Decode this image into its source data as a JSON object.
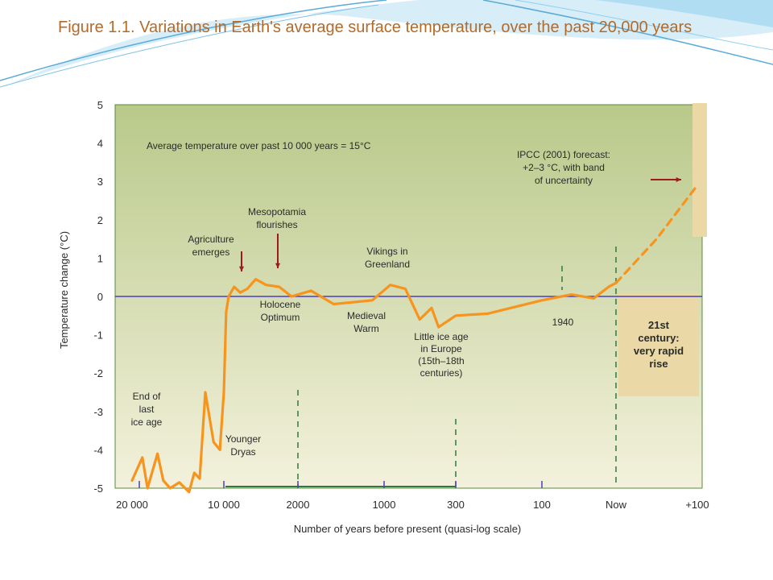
{
  "slide": {
    "title": "Figure 1.1. Variations in Earth's average surface temperature, over the past 20,000 years"
  },
  "colors": {
    "title": "#b36b2a",
    "curve": "#f7941d",
    "baseline": "#4b3fbf",
    "arrow": "#9e1b1b",
    "plot_bg_top": "#b9c98a",
    "plot_bg_bottom": "#f3f1dc",
    "forecast_band": "#ead9a6",
    "century_box": "#ead9a6",
    "gridline": "#2f7a3a"
  },
  "chart_data": {
    "type": "line",
    "xlabel": "Number of years before present (quasi-log scale)",
    "ylabel": "Temperature change (°C)",
    "ylim": [
      -5,
      5
    ],
    "y_ticks": [
      "5",
      "4",
      "3",
      "2",
      "1",
      "0",
      "-1",
      "-2",
      "-3",
      "-4",
      "-5"
    ],
    "x_ticks": [
      "20 000",
      "10 000",
      "2000",
      "1000",
      "300",
      "100",
      "Now",
      "+100"
    ],
    "baseline_value": 0,
    "series": [
      {
        "style": "solid",
        "points": [
          [
            "20 000",
            -4.8
          ],
          [
            -18500,
            -4.2
          ],
          [
            -17800,
            -5.0
          ],
          [
            -16500,
            -4.1
          ],
          [
            -15800,
            -4.8
          ],
          [
            -15000,
            -5.0
          ],
          [
            -14000,
            -4.85
          ],
          [
            -13000,
            -5.1
          ],
          [
            -12500,
            -4.6
          ],
          [
            -12000,
            -4.75
          ],
          [
            -11500,
            -2.5
          ],
          [
            -10800,
            -3.8
          ],
          [
            -10300,
            -4.0
          ],
          [
            -10000,
            -2.5
          ],
          [
            -9500,
            -0.4
          ],
          [
            -9000,
            0.0
          ],
          [
            -8000,
            0.25
          ],
          [
            -7000,
            0.1
          ],
          [
            -6000,
            0.2
          ],
          [
            -5000,
            0.45
          ],
          [
            -4000,
            0.3
          ],
          [
            -3000,
            0.25
          ],
          [
            -2300,
            0.0
          ],
          [
            -1800,
            0.15
          ],
          [
            -1500,
            -0.2
          ],
          [
            -1100,
            -0.1
          ],
          [
            -900,
            0.3
          ],
          [
            -700,
            0.2
          ],
          [
            -550,
            -0.6
          ],
          [
            -450,
            -0.3
          ],
          [
            -400,
            -0.8
          ],
          [
            -300,
            -0.5
          ],
          [
            -200,
            -0.45
          ],
          [
            -100,
            -0.1
          ],
          [
            -60,
            0.05
          ],
          [
            -30,
            -0.05
          ],
          [
            -10,
            0.25
          ],
          [
            0,
            0.35
          ]
        ]
      },
      {
        "style": "dashed",
        "points": [
          [
            0,
            0.35
          ],
          [
            50,
            1.5
          ],
          [
            100,
            2.9
          ]
        ]
      }
    ],
    "annotations": {
      "avg_temp": "Average temperature over past 10 000 years = 15°C",
      "ipcc": [
        "IPCC (2001) forecast:",
        "+2–3 °C, with band",
        "of uncertainty"
      ],
      "mesopotamia": [
        "Mesopotamia",
        "flourishes"
      ],
      "agriculture": [
        "Agriculture",
        "emerges"
      ],
      "vikings": [
        "Vikings in",
        "Greenland"
      ],
      "holocene": [
        "Holocene",
        "Optimum"
      ],
      "medieval": [
        "Medieval",
        "Warm"
      ],
      "little_ice_age": [
        "Little ice age",
        "in Europe",
        "(15th–18th",
        "centuries)"
      ],
      "year_1940": "1940",
      "end_ice_age": [
        "End of",
        "last",
        "ice age"
      ],
      "younger_dryas": [
        "Younger",
        "Dryas"
      ],
      "century": [
        "21st",
        "century:",
        "very rapid",
        "rise"
      ]
    }
  }
}
